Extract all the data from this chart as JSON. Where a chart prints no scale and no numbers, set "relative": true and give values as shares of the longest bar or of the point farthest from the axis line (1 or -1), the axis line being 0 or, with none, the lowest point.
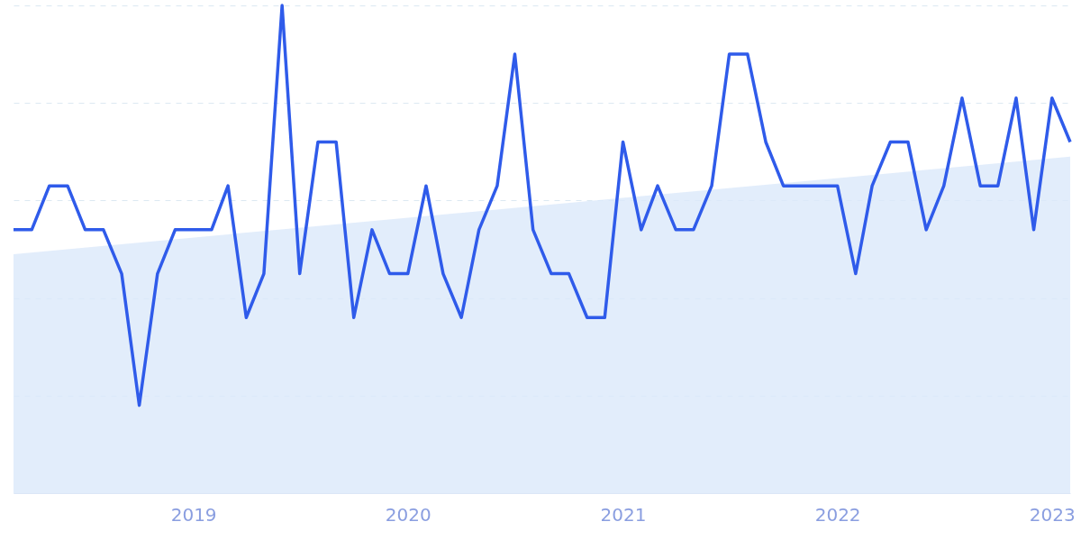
{
  "chart_data": {
    "type": "line",
    "relative": true,
    "grid": "y",
    "tick_labels": "x",
    "marker": "none",
    "line_style": "solid",
    "x": [
      "2018-03",
      "2018-04",
      "2018-05",
      "2018-06",
      "2018-07",
      "2018-08",
      "2018-09",
      "2018-10",
      "2018-11",
      "2018-12",
      "2019-01",
      "2019-02",
      "2019-03",
      "2019-04",
      "2019-05",
      "2019-06",
      "2019-07",
      "2019-08",
      "2019-09",
      "2019-10",
      "2019-11",
      "2019-12",
      "2020-01",
      "2020-02",
      "2020-03",
      "2020-04",
      "2020-05",
      "2020-06",
      "2020-07",
      "2020-08",
      "2020-09",
      "2020-10",
      "2020-11",
      "2020-12",
      "2021-01",
      "2021-02",
      "2021-03",
      "2021-04",
      "2021-05",
      "2021-06",
      "2021-07",
      "2021-08",
      "2021-09",
      "2021-10",
      "2021-11",
      "2021-12",
      "2022-01",
      "2022-02",
      "2022-03",
      "2022-04",
      "2022-05",
      "2022-06",
      "2022-07",
      "2022-08",
      "2022-09",
      "2022-10",
      "2022-11",
      "2022-12",
      "2023-01",
      "2023-02"
    ],
    "xlim": [
      "2018-03",
      "2023-02"
    ],
    "xticks": [
      "2019",
      "2020",
      "2021",
      "2022",
      "2023"
    ],
    "series": [
      {
        "type": "area",
        "color": "#dbe9fa",
        "x": [
          "2018-03",
          "2023-02"
        ],
        "values": [
          0.49,
          0.69
        ]
      },
      {
        "color": "#2f5bea",
        "values": [
          0.54,
          0.54,
          0.63,
          0.63,
          0.54,
          0.54,
          0.45,
          0.18,
          0.45,
          0.54,
          0.54,
          0.54,
          0.63,
          0.36,
          0.45,
          1.0,
          0.45,
          0.72,
          0.72,
          0.36,
          0.54,
          0.45,
          0.45,
          0.63,
          0.45,
          0.36,
          0.54,
          0.63,
          0.9,
          0.54,
          0.45,
          0.45,
          0.36,
          0.36,
          0.72,
          0.54,
          0.63,
          0.54,
          0.54,
          0.63,
          0.9,
          0.9,
          0.72,
          0.63,
          0.63,
          0.63,
          0.63,
          0.45,
          0.63,
          0.72,
          0.72,
          0.54,
          0.63,
          0.81,
          0.63,
          0.63,
          0.81,
          0.54,
          0.81,
          0.72
        ]
      }
    ]
  }
}
